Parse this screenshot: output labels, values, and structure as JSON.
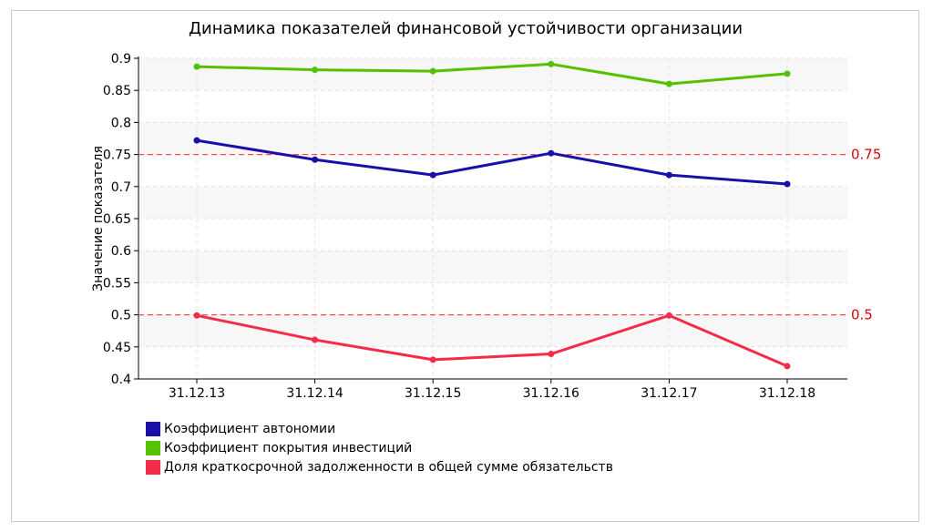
{
  "chart_data": {
    "type": "line",
    "title": "Динамика показателей финансовой устойчивости организации",
    "ylabel": "Значение показателя",
    "xlabel": "",
    "categories": [
      "31.12.13",
      "31.12.14",
      "31.12.15",
      "31.12.16",
      "31.12.17",
      "31.12.18"
    ],
    "ylim": [
      0.4,
      0.9
    ],
    "yticks": [
      "0.4",
      "0.45",
      "0.5",
      "0.55",
      "0.6",
      "0.65",
      "0.7",
      "0.75",
      "0.8",
      "0.85",
      "0.9"
    ],
    "grid": true,
    "legend_position": "bottom-left",
    "series": [
      {
        "name": "Коэффициент автономии",
        "color": "#1a0fa8",
        "values": [
          0.772,
          0.742,
          0.718,
          0.752,
          0.718,
          0.704
        ]
      },
      {
        "name": "Коэффициент покрытия инвестиций",
        "color": "#55c100",
        "values": [
          0.887,
          0.882,
          0.88,
          0.891,
          0.86,
          0.876
        ]
      },
      {
        "name": "Доля краткосрочной задолженности в общей сумме обязательств",
        "color": "#f52b4a",
        "values": [
          0.499,
          0.461,
          0.43,
          0.439,
          0.499,
          0.42
        ]
      }
    ],
    "reference_lines": [
      {
        "value": 0.75,
        "label": "0.75",
        "color": "#ff4d4d"
      },
      {
        "value": 0.5,
        "label": "0.5",
        "color": "#ff4d4d"
      }
    ]
  }
}
